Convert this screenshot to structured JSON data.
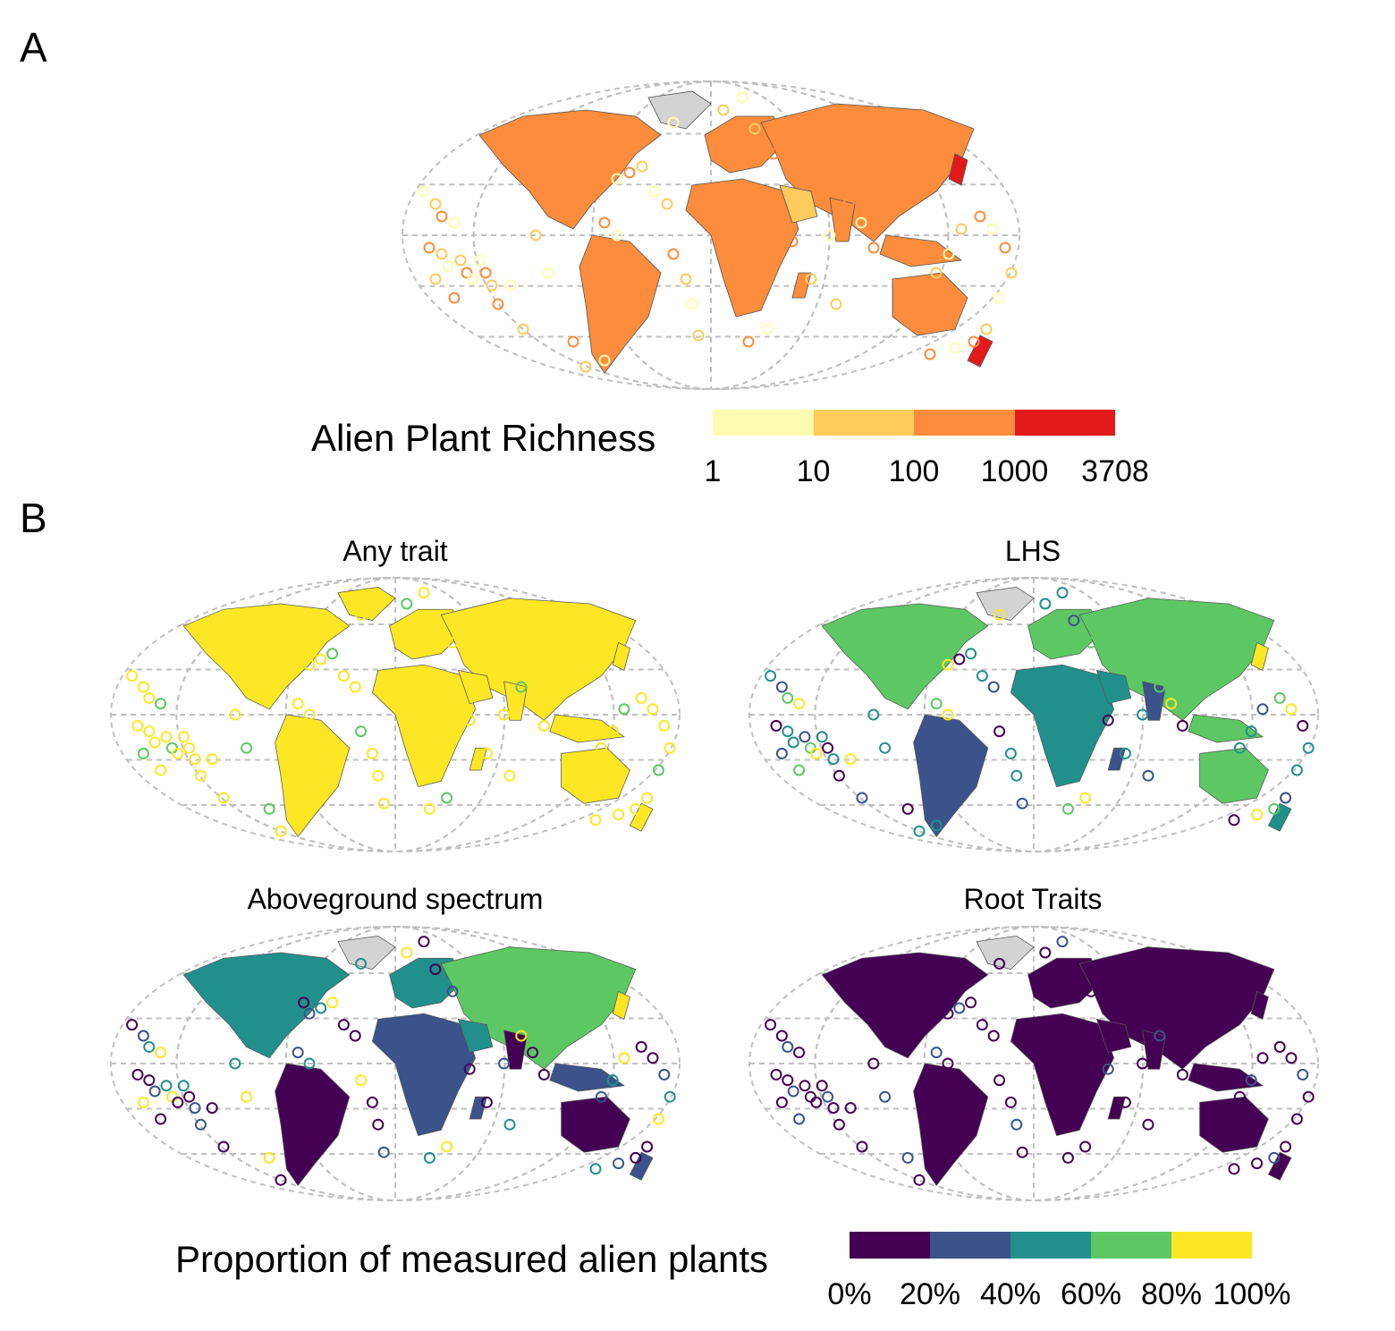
{
  "panel_a": {
    "letter": "A",
    "legend": {
      "title": "Alien Plant Richness",
      "ticks": [
        "1",
        "10",
        "100",
        "1000",
        "3708"
      ],
      "colors": [
        "#FFFBB0",
        "#FECB5C",
        "#FD8D3C",
        "#E31A1C"
      ]
    }
  },
  "panel_b": {
    "letter": "B",
    "maps": [
      {
        "title": "Any trait",
        "dominant_color": "#FDE725"
      },
      {
        "title": "LHS",
        "dominant_color": "#21908C"
      },
      {
        "title": "Aboveground spectrum",
        "dominant_color": "#3B528B"
      },
      {
        "title": "Root Traits",
        "dominant_color": "#440154"
      }
    ],
    "legend": {
      "title": "Proportion of measured alien plants",
      "ticks": [
        "0%",
        "20%",
        "40%",
        "60%",
        "80%",
        "100%"
      ],
      "colors": [
        "#440154",
        "#3B528B",
        "#21908C",
        "#5DC863",
        "#FDE725"
      ]
    }
  },
  "colors": {
    "no_data": "#D3D3D3",
    "graticule": "#BFBFBF"
  }
}
